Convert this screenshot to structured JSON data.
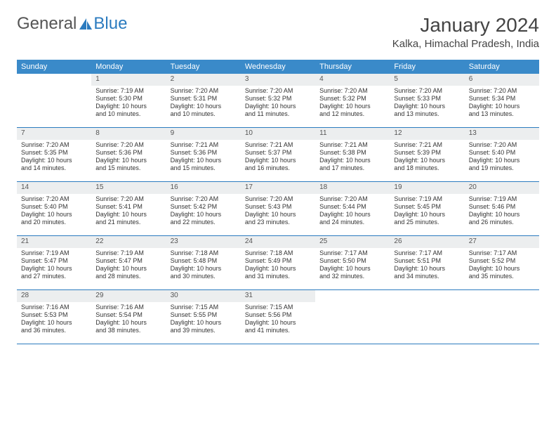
{
  "logo": {
    "text1": "General",
    "text2": "Blue"
  },
  "title": "January 2024",
  "location": "Kalka, Himachal Pradesh, India",
  "colors": {
    "header_bg": "#3a8ac9",
    "header_text": "#ffffff",
    "daynum_bg": "#eceeef",
    "week_border": "#2b7bbf",
    "body_text": "#333333"
  },
  "daynames": [
    "Sunday",
    "Monday",
    "Tuesday",
    "Wednesday",
    "Thursday",
    "Friday",
    "Saturday"
  ],
  "weeks": [
    [
      {
        "empty": true
      },
      {
        "n": "1",
        "sunrise": "Sunrise: 7:19 AM",
        "sunset": "Sunset: 5:30 PM",
        "d1": "Daylight: 10 hours",
        "d2": "and 10 minutes."
      },
      {
        "n": "2",
        "sunrise": "Sunrise: 7:20 AM",
        "sunset": "Sunset: 5:31 PM",
        "d1": "Daylight: 10 hours",
        "d2": "and 10 minutes."
      },
      {
        "n": "3",
        "sunrise": "Sunrise: 7:20 AM",
        "sunset": "Sunset: 5:32 PM",
        "d1": "Daylight: 10 hours",
        "d2": "and 11 minutes."
      },
      {
        "n": "4",
        "sunrise": "Sunrise: 7:20 AM",
        "sunset": "Sunset: 5:32 PM",
        "d1": "Daylight: 10 hours",
        "d2": "and 12 minutes."
      },
      {
        "n": "5",
        "sunrise": "Sunrise: 7:20 AM",
        "sunset": "Sunset: 5:33 PM",
        "d1": "Daylight: 10 hours",
        "d2": "and 13 minutes."
      },
      {
        "n": "6",
        "sunrise": "Sunrise: 7:20 AM",
        "sunset": "Sunset: 5:34 PM",
        "d1": "Daylight: 10 hours",
        "d2": "and 13 minutes."
      }
    ],
    [
      {
        "n": "7",
        "sunrise": "Sunrise: 7:20 AM",
        "sunset": "Sunset: 5:35 PM",
        "d1": "Daylight: 10 hours",
        "d2": "and 14 minutes."
      },
      {
        "n": "8",
        "sunrise": "Sunrise: 7:20 AM",
        "sunset": "Sunset: 5:36 PM",
        "d1": "Daylight: 10 hours",
        "d2": "and 15 minutes."
      },
      {
        "n": "9",
        "sunrise": "Sunrise: 7:21 AM",
        "sunset": "Sunset: 5:36 PM",
        "d1": "Daylight: 10 hours",
        "d2": "and 15 minutes."
      },
      {
        "n": "10",
        "sunrise": "Sunrise: 7:21 AM",
        "sunset": "Sunset: 5:37 PM",
        "d1": "Daylight: 10 hours",
        "d2": "and 16 minutes."
      },
      {
        "n": "11",
        "sunrise": "Sunrise: 7:21 AM",
        "sunset": "Sunset: 5:38 PM",
        "d1": "Daylight: 10 hours",
        "d2": "and 17 minutes."
      },
      {
        "n": "12",
        "sunrise": "Sunrise: 7:21 AM",
        "sunset": "Sunset: 5:39 PM",
        "d1": "Daylight: 10 hours",
        "d2": "and 18 minutes."
      },
      {
        "n": "13",
        "sunrise": "Sunrise: 7:20 AM",
        "sunset": "Sunset: 5:40 PM",
        "d1": "Daylight: 10 hours",
        "d2": "and 19 minutes."
      }
    ],
    [
      {
        "n": "14",
        "sunrise": "Sunrise: 7:20 AM",
        "sunset": "Sunset: 5:40 PM",
        "d1": "Daylight: 10 hours",
        "d2": "and 20 minutes."
      },
      {
        "n": "15",
        "sunrise": "Sunrise: 7:20 AM",
        "sunset": "Sunset: 5:41 PM",
        "d1": "Daylight: 10 hours",
        "d2": "and 21 minutes."
      },
      {
        "n": "16",
        "sunrise": "Sunrise: 7:20 AM",
        "sunset": "Sunset: 5:42 PM",
        "d1": "Daylight: 10 hours",
        "d2": "and 22 minutes."
      },
      {
        "n": "17",
        "sunrise": "Sunrise: 7:20 AM",
        "sunset": "Sunset: 5:43 PM",
        "d1": "Daylight: 10 hours",
        "d2": "and 23 minutes."
      },
      {
        "n": "18",
        "sunrise": "Sunrise: 7:20 AM",
        "sunset": "Sunset: 5:44 PM",
        "d1": "Daylight: 10 hours",
        "d2": "and 24 minutes."
      },
      {
        "n": "19",
        "sunrise": "Sunrise: 7:19 AM",
        "sunset": "Sunset: 5:45 PM",
        "d1": "Daylight: 10 hours",
        "d2": "and 25 minutes."
      },
      {
        "n": "20",
        "sunrise": "Sunrise: 7:19 AM",
        "sunset": "Sunset: 5:46 PM",
        "d1": "Daylight: 10 hours",
        "d2": "and 26 minutes."
      }
    ],
    [
      {
        "n": "21",
        "sunrise": "Sunrise: 7:19 AM",
        "sunset": "Sunset: 5:47 PM",
        "d1": "Daylight: 10 hours",
        "d2": "and 27 minutes."
      },
      {
        "n": "22",
        "sunrise": "Sunrise: 7:19 AM",
        "sunset": "Sunset: 5:47 PM",
        "d1": "Daylight: 10 hours",
        "d2": "and 28 minutes."
      },
      {
        "n": "23",
        "sunrise": "Sunrise: 7:18 AM",
        "sunset": "Sunset: 5:48 PM",
        "d1": "Daylight: 10 hours",
        "d2": "and 30 minutes."
      },
      {
        "n": "24",
        "sunrise": "Sunrise: 7:18 AM",
        "sunset": "Sunset: 5:49 PM",
        "d1": "Daylight: 10 hours",
        "d2": "and 31 minutes."
      },
      {
        "n": "25",
        "sunrise": "Sunrise: 7:17 AM",
        "sunset": "Sunset: 5:50 PM",
        "d1": "Daylight: 10 hours",
        "d2": "and 32 minutes."
      },
      {
        "n": "26",
        "sunrise": "Sunrise: 7:17 AM",
        "sunset": "Sunset: 5:51 PM",
        "d1": "Daylight: 10 hours",
        "d2": "and 34 minutes."
      },
      {
        "n": "27",
        "sunrise": "Sunrise: 7:17 AM",
        "sunset": "Sunset: 5:52 PM",
        "d1": "Daylight: 10 hours",
        "d2": "and 35 minutes."
      }
    ],
    [
      {
        "n": "28",
        "sunrise": "Sunrise: 7:16 AM",
        "sunset": "Sunset: 5:53 PM",
        "d1": "Daylight: 10 hours",
        "d2": "and 36 minutes."
      },
      {
        "n": "29",
        "sunrise": "Sunrise: 7:16 AM",
        "sunset": "Sunset: 5:54 PM",
        "d1": "Daylight: 10 hours",
        "d2": "and 38 minutes."
      },
      {
        "n": "30",
        "sunrise": "Sunrise: 7:15 AM",
        "sunset": "Sunset: 5:55 PM",
        "d1": "Daylight: 10 hours",
        "d2": "and 39 minutes."
      },
      {
        "n": "31",
        "sunrise": "Sunrise: 7:15 AM",
        "sunset": "Sunset: 5:56 PM",
        "d1": "Daylight: 10 hours",
        "d2": "and 41 minutes."
      },
      {
        "empty": true
      },
      {
        "empty": true
      },
      {
        "empty": true
      }
    ]
  ]
}
